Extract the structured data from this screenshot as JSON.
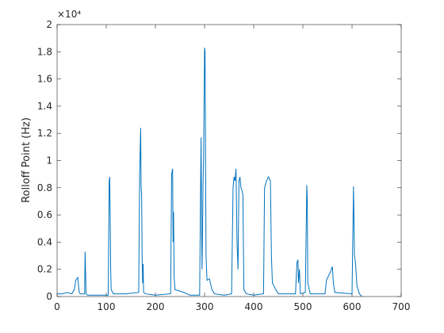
{
  "chart_data": {
    "type": "line",
    "y_label": "Rolloff Point (Hz)",
    "y_exponent_label": "×10⁴",
    "xlim": [
      0,
      700
    ],
    "xticks": [
      0,
      100,
      200,
      300,
      400,
      500,
      600,
      700
    ],
    "ylim": [
      0,
      2
    ],
    "yticks": [
      0,
      0.2,
      0.4,
      0.6,
      0.8,
      1,
      1.2,
      1.4,
      1.6,
      1.8,
      2
    ],
    "x": [
      1,
      10,
      20,
      30,
      35,
      38,
      42,
      45,
      47,
      56,
      57,
      58,
      59,
      62,
      80,
      104,
      106,
      107,
      108,
      109,
      110,
      115,
      140,
      166,
      168,
      170,
      171,
      172,
      173,
      174,
      175,
      176,
      180,
      200,
      231,
      233,
      235,
      236,
      237,
      238,
      240,
      250,
      258,
      270,
      290,
      292,
      293,
      294,
      295,
      297,
      298,
      300,
      301,
      302,
      303,
      305,
      310,
      315,
      320,
      340,
      355,
      358,
      360,
      362,
      364,
      366,
      368,
      370,
      372,
      374,
      376,
      378,
      380,
      385,
      400,
      420,
      422,
      426,
      430,
      434,
      436,
      438,
      445,
      450,
      485,
      488,
      490,
      491,
      493,
      495,
      505,
      508,
      509,
      510,
      515,
      545,
      548,
      552,
      556,
      560,
      562,
      565,
      600,
      603,
      605,
      607,
      610,
      615,
      620
    ],
    "series": [
      {
        "color": "#0072bd",
        "values": [
          0.02,
          0.02,
          0.03,
          0.02,
          0.05,
          0.12,
          0.14,
          0.03,
          0.02,
          0.02,
          0.33,
          0.17,
          0.02,
          0.01,
          0.01,
          0.01,
          0.85,
          0.88,
          0.6,
          0.2,
          0.05,
          0.02,
          0.02,
          0.03,
          0.9,
          1.24,
          0.8,
          0.75,
          0.3,
          0.1,
          0.24,
          0.03,
          0.02,
          0.01,
          0.02,
          0.9,
          0.94,
          0.4,
          0.62,
          0.15,
          0.05,
          0.04,
          0.03,
          0.01,
          0.01,
          0.83,
          1.17,
          0.5,
          0.2,
          0.85,
          1.0,
          1.83,
          1.8,
          1.05,
          0.3,
          0.12,
          0.13,
          0.05,
          0.02,
          0.01,
          0.02,
          0.8,
          0.88,
          0.85,
          0.94,
          0.4,
          0.2,
          0.85,
          0.88,
          0.8,
          0.78,
          0.75,
          0.05,
          0.02,
          0.01,
          0.02,
          0.8,
          0.85,
          0.88,
          0.85,
          0.3,
          0.1,
          0.05,
          0.02,
          0.02,
          0.25,
          0.27,
          0.1,
          0.2,
          0.02,
          0.03,
          0.82,
          0.7,
          0.1,
          0.02,
          0.02,
          0.12,
          0.15,
          0.18,
          0.22,
          0.1,
          0.03,
          0.02,
          0.81,
          0.3,
          0.25,
          0.08,
          0.02,
          0.0
        ]
      }
    ]
  }
}
